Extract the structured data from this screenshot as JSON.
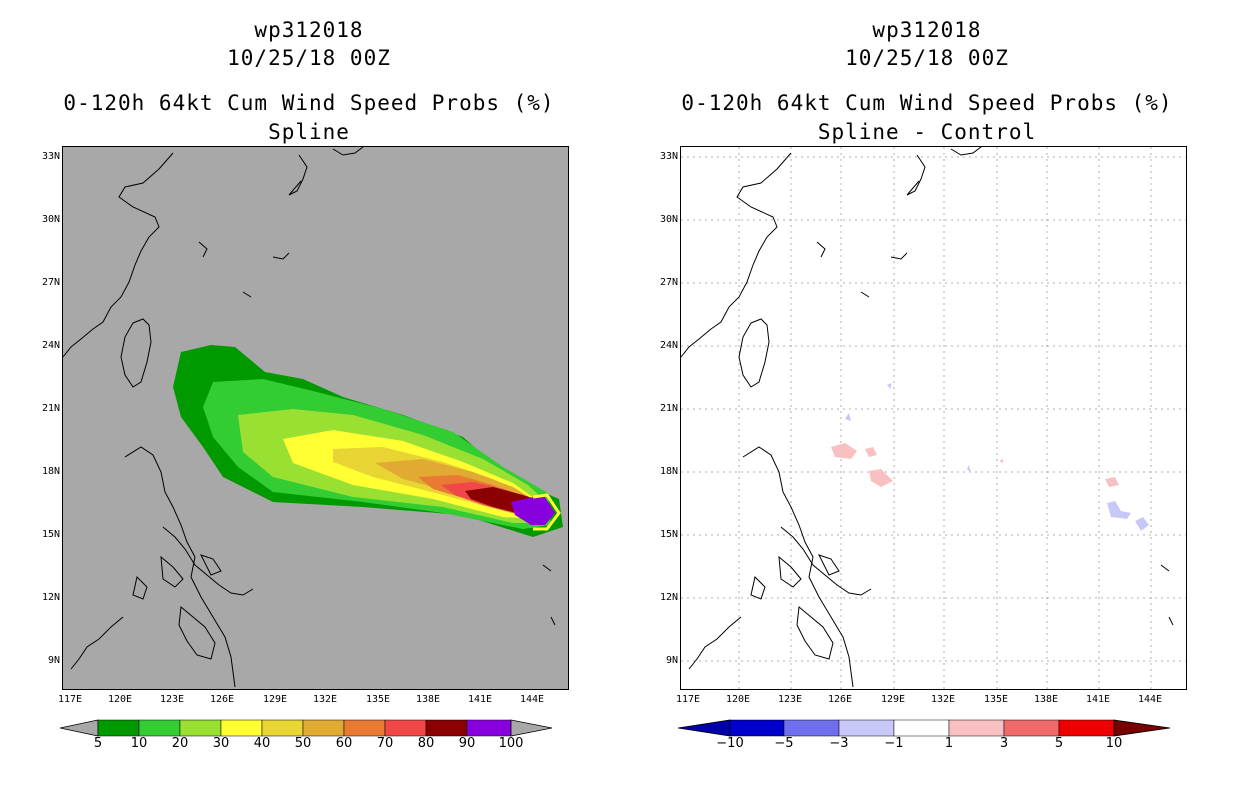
{
  "panels": [
    {
      "title_line1": "wp312018",
      "title_line2": "10/25/18 00Z",
      "title_line3": "0-120h 64kt Cum Wind Speed Probs (%)",
      "title_line4": "Spline",
      "map_background": "#a8a8a8",
      "grid": false,
      "lat_labels": [
        "33N",
        "30N",
        "27N",
        "24N",
        "21N",
        "18N",
        "15N",
        "12N",
        "9N"
      ],
      "lon_labels": [
        "117E",
        "120E",
        "123E",
        "126E",
        "129E",
        "132E",
        "135E",
        "138E",
        "141E",
        "144E"
      ],
      "colorbar": {
        "colors": [
          "#009900",
          "#33cc33",
          "#99e033",
          "#ffff33",
          "#e8d433",
          "#e0aa33",
          "#e87a33",
          "#f04848",
          "#8b0000",
          "#8800dd"
        ],
        "end_colors": [
          "#a8a8a8",
          "#a8a8a8"
        ],
        "labels": [
          "5",
          "10",
          "20",
          "30",
          "40",
          "50",
          "60",
          "70",
          "80",
          "90",
          "100"
        ]
      }
    },
    {
      "title_line1": "wp312018",
      "title_line2": "10/25/18 00Z",
      "title_line3": "0-120h 64kt Cum Wind Speed Probs (%)",
      "title_line4": "Spline - Control",
      "map_background": "#ffffff",
      "grid": true,
      "lat_labels": [
        "33N",
        "30N",
        "27N",
        "24N",
        "21N",
        "18N",
        "15N",
        "12N",
        "9N"
      ],
      "lon_labels": [
        "117E",
        "120E",
        "123E",
        "126E",
        "129E",
        "132E",
        "135E",
        "138E",
        "141E",
        "144E"
      ],
      "colorbar": {
        "colors": [
          "#0000cc",
          "#7070ee",
          "#c8c8f8",
          "#ffffff",
          "#f8c0c0",
          "#f06a6a",
          "#ee0000"
        ],
        "end_colors": [
          "#0000aa",
          "#770000"
        ],
        "labels": [
          "−10",
          "−5",
          "−3",
          "−1",
          "1",
          "3",
          "5",
          "10"
        ]
      }
    }
  ]
}
